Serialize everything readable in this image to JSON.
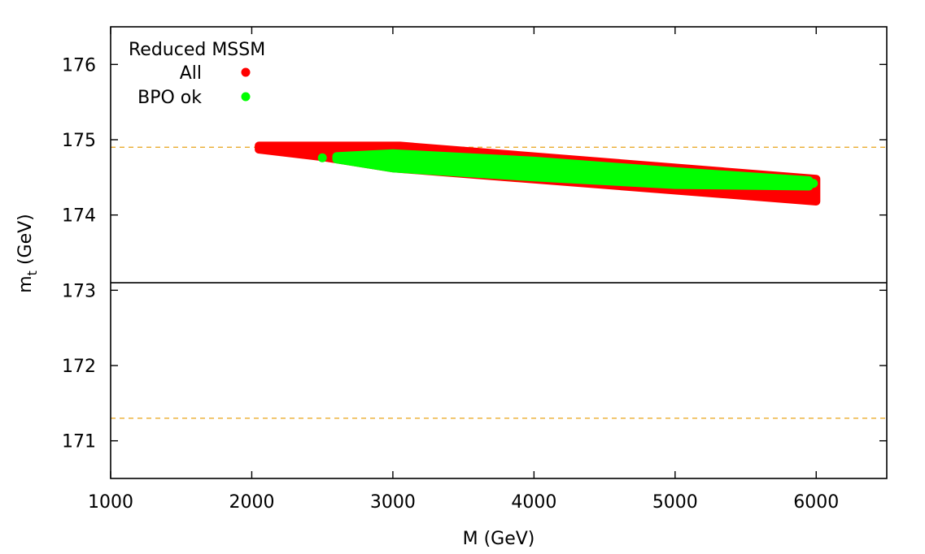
{
  "chart_data": {
    "type": "scatter",
    "xlabel": "M (GeV)",
    "ylabel_main": "m",
    "ylabel_sub": "t",
    "ylabel_unit": " (GeV)",
    "xlim": [
      1000,
      6500
    ],
    "ylim": [
      170.5,
      176.5
    ],
    "xticks": [
      1000,
      2000,
      3000,
      4000,
      5000,
      6000
    ],
    "yticks": [
      171,
      172,
      173,
      174,
      175,
      176
    ],
    "grid": false,
    "legend_position": "top-left",
    "legend_title": "Reduced MSSM",
    "reference_lines": [
      {
        "y": 174.9,
        "style": "dashed",
        "color": "#e8a317"
      },
      {
        "y": 171.3,
        "style": "dashed",
        "color": "#e8a317"
      }
    ],
    "divider_line": {
      "y": 173.1,
      "style": "solid",
      "color": "#000000"
    },
    "series": [
      {
        "name": "All",
        "color": "#ff0000",
        "region": {
          "upper": [
            [
              2050,
              174.92
            ],
            [
              3050,
              174.92
            ],
            [
              6000,
              174.48
            ]
          ],
          "lower": [
            [
              2050,
              174.87
            ],
            [
              2500,
              174.77
            ],
            [
              3000,
              174.62
            ],
            [
              6000,
              174.18
            ]
          ]
        }
      },
      {
        "name": "BPO ok",
        "color": "#00ff00",
        "region": {
          "upper": [
            [
              2600,
              174.78
            ],
            [
              3000,
              174.82
            ],
            [
              4000,
              174.72
            ],
            [
              5000,
              174.58
            ],
            [
              5950,
              174.46
            ]
          ],
          "lower": [
            [
              2600,
              174.74
            ],
            [
              3000,
              174.62
            ],
            [
              4000,
              174.5
            ],
            [
              5000,
              174.4
            ],
            [
              5950,
              174.38
            ]
          ]
        },
        "points": [
          {
            "x": 2500,
            "y": 174.76
          },
          {
            "x": 2620,
            "y": 174.76
          },
          {
            "x": 2700,
            "y": 174.75
          },
          {
            "x": 2800,
            "y": 174.73
          },
          {
            "x": 5980,
            "y": 174.42
          }
        ]
      }
    ]
  }
}
